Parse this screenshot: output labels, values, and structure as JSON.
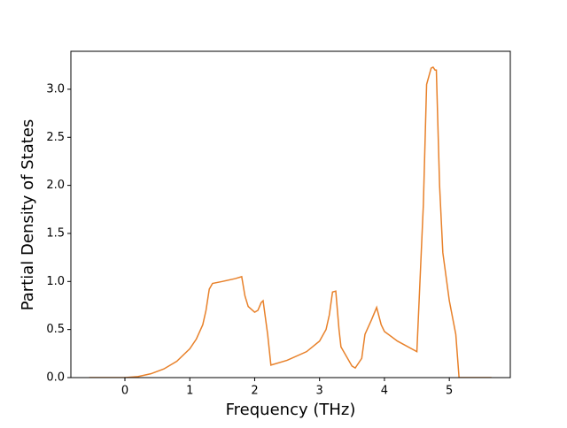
{
  "chart_data": {
    "type": "line",
    "xlabel": "Frequency (THz)",
    "ylabel": "Partial Density of States",
    "x": [
      -0.55,
      0,
      0.2,
      0.4,
      0.6,
      0.8,
      1.0,
      1.1,
      1.2,
      1.25,
      1.3,
      1.35,
      1.5,
      1.7,
      1.8,
      1.85,
      1.9,
      2.0,
      2.05,
      2.1,
      2.13,
      2.2,
      2.25,
      2.5,
      2.8,
      3.0,
      3.1,
      3.15,
      3.2,
      3.25,
      3.3,
      3.33,
      3.5,
      3.55,
      3.65,
      3.7,
      3.8,
      3.88,
      3.95,
      4.0,
      4.2,
      4.5,
      4.6,
      4.65,
      4.72,
      4.75,
      4.78,
      4.8,
      4.85,
      4.9,
      5.0,
      5.1,
      5.15,
      5.65
    ],
    "series": [
      {
        "color": "#e8812a",
        "values": [
          0,
          0,
          0.01,
          0.04,
          0.09,
          0.17,
          0.3,
          0.4,
          0.55,
          0.7,
          0.92,
          0.98,
          1.0,
          1.03,
          1.05,
          0.85,
          0.74,
          0.68,
          0.7,
          0.78,
          0.8,
          0.45,
          0.13,
          0.18,
          0.27,
          0.38,
          0.5,
          0.65,
          0.89,
          0.9,
          0.5,
          0.32,
          0.12,
          0.1,
          0.2,
          0.45,
          0.6,
          0.73,
          0.55,
          0.48,
          0.38,
          0.27,
          1.8,
          3.05,
          3.22,
          3.23,
          3.2,
          3.2,
          2.0,
          1.3,
          0.8,
          0.45,
          0,
          0
        ]
      }
    ],
    "xlim": [
      -0.833,
      5.94
    ],
    "ylim": [
      0,
      3.395
    ],
    "xticks": [
      0,
      1,
      2,
      3,
      4,
      5
    ],
    "yticks": [
      {
        "value": 0,
        "label": "0.0"
      },
      {
        "value": 0.5,
        "label": "0.5"
      },
      {
        "value": 1,
        "label": "1.0"
      },
      {
        "value": 1.5,
        "label": "1.5"
      },
      {
        "value": 2,
        "label": "2.0"
      },
      {
        "value": 2.5,
        "label": "2.5"
      },
      {
        "value": 3,
        "label": "3.0"
      }
    ]
  }
}
